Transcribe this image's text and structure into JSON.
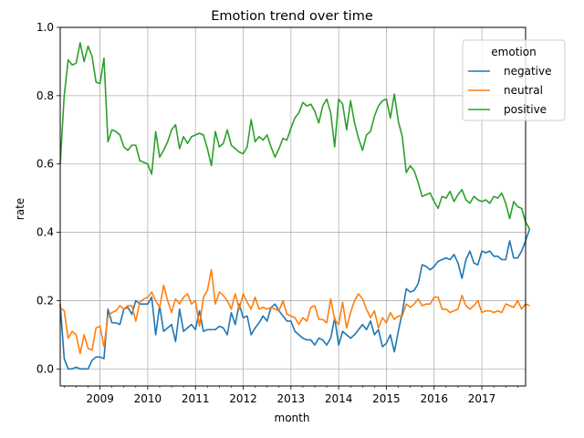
{
  "chart_data": {
    "type": "line",
    "title": "Emotion trend over time",
    "xlabel": "month",
    "ylabel": "rate",
    "xlim": [
      "2008-03",
      "2017-12"
    ],
    "ylim": [
      -0.05,
      1.0
    ],
    "grid": true,
    "x_ticks": [
      "2009",
      "2010",
      "2011",
      "2012",
      "2013",
      "2014",
      "2015",
      "2016",
      "2017"
    ],
    "y_ticks": [
      "0.0",
      "0.2",
      "0.4",
      "0.6",
      "0.8",
      "1.0"
    ],
    "legend": {
      "title": "emotion",
      "position": "top-right"
    },
    "x_start": "2008-03",
    "series": [
      {
        "name": "negative",
        "color": "#1f77b4",
        "values": [
          0.19,
          0.03,
          0.0,
          0.0,
          0.005,
          0.0,
          0.0,
          0.0,
          0.025,
          0.035,
          0.035,
          0.03,
          0.175,
          0.135,
          0.135,
          0.13,
          0.175,
          0.18,
          0.16,
          0.2,
          0.19,
          0.19,
          0.19,
          0.21,
          0.1,
          0.185,
          0.11,
          0.12,
          0.13,
          0.08,
          0.175,
          0.11,
          0.12,
          0.13,
          0.115,
          0.17,
          0.11,
          0.115,
          0.115,
          0.115,
          0.125,
          0.12,
          0.1,
          0.165,
          0.13,
          0.19,
          0.15,
          0.155,
          0.1,
          0.12,
          0.135,
          0.155,
          0.14,
          0.18,
          0.19,
          0.17,
          0.155,
          0.14,
          0.14,
          0.11,
          0.1,
          0.09,
          0.085,
          0.085,
          0.07,
          0.09,
          0.085,
          0.07,
          0.09,
          0.15,
          0.07,
          0.11,
          0.1,
          0.09,
          0.1,
          0.115,
          0.13,
          0.115,
          0.14,
          0.1,
          0.115,
          0.065,
          0.075,
          0.1,
          0.05,
          0.11,
          0.165,
          0.235,
          0.225,
          0.23,
          0.25,
          0.305,
          0.3,
          0.29,
          0.3,
          0.315,
          0.32,
          0.325,
          0.32,
          0.335,
          0.31,
          0.265,
          0.32,
          0.345,
          0.31,
          0.305,
          0.345,
          0.34,
          0.345,
          0.33,
          0.33,
          0.32,
          0.32,
          0.375,
          0.325,
          0.325,
          0.345,
          0.375,
          0.41
        ]
      },
      {
        "name": "neutral",
        "color": "#ff7f0e",
        "values": [
          0.18,
          0.17,
          0.09,
          0.11,
          0.1,
          0.045,
          0.1,
          0.06,
          0.055,
          0.12,
          0.125,
          0.065,
          0.155,
          0.165,
          0.17,
          0.185,
          0.175,
          0.185,
          0.185,
          0.14,
          0.195,
          0.205,
          0.21,
          0.225,
          0.2,
          0.18,
          0.245,
          0.2,
          0.165,
          0.205,
          0.19,
          0.21,
          0.22,
          0.19,
          0.2,
          0.125,
          0.21,
          0.23,
          0.29,
          0.19,
          0.225,
          0.215,
          0.2,
          0.175,
          0.22,
          0.175,
          0.22,
          0.195,
          0.175,
          0.21,
          0.175,
          0.18,
          0.175,
          0.18,
          0.175,
          0.17,
          0.2,
          0.16,
          0.155,
          0.15,
          0.13,
          0.15,
          0.14,
          0.18,
          0.185,
          0.145,
          0.145,
          0.135,
          0.205,
          0.145,
          0.13,
          0.195,
          0.12,
          0.165,
          0.2,
          0.22,
          0.205,
          0.175,
          0.15,
          0.17,
          0.12,
          0.15,
          0.135,
          0.165,
          0.145,
          0.155,
          0.155,
          0.19,
          0.18,
          0.19,
          0.205,
          0.185,
          0.19,
          0.19,
          0.21,
          0.21,
          0.175,
          0.175,
          0.165,
          0.17,
          0.175,
          0.215,
          0.185,
          0.175,
          0.185,
          0.2,
          0.165,
          0.17,
          0.17,
          0.165,
          0.17,
          0.165,
          0.19,
          0.185,
          0.18,
          0.2,
          0.175,
          0.19,
          0.185
        ]
      },
      {
        "name": "positive",
        "color": "#2ca02c",
        "values": [
          0.6,
          0.8,
          0.905,
          0.89,
          0.895,
          0.955,
          0.9,
          0.945,
          0.915,
          0.84,
          0.835,
          0.91,
          0.665,
          0.7,
          0.695,
          0.685,
          0.65,
          0.64,
          0.655,
          0.655,
          0.61,
          0.605,
          0.6,
          0.57,
          0.695,
          0.62,
          0.64,
          0.665,
          0.7,
          0.715,
          0.645,
          0.68,
          0.66,
          0.68,
          0.685,
          0.69,
          0.685,
          0.645,
          0.595,
          0.695,
          0.65,
          0.66,
          0.7,
          0.655,
          0.645,
          0.635,
          0.63,
          0.65,
          0.73,
          0.665,
          0.68,
          0.67,
          0.685,
          0.65,
          0.62,
          0.645,
          0.675,
          0.67,
          0.705,
          0.735,
          0.75,
          0.78,
          0.77,
          0.775,
          0.755,
          0.72,
          0.77,
          0.79,
          0.75,
          0.65,
          0.79,
          0.775,
          0.7,
          0.785,
          0.72,
          0.675,
          0.64,
          0.685,
          0.695,
          0.74,
          0.77,
          0.785,
          0.79,
          0.735,
          0.805,
          0.725,
          0.68,
          0.575,
          0.595,
          0.58,
          0.545,
          0.505,
          0.51,
          0.515,
          0.49,
          0.47,
          0.505,
          0.5,
          0.52,
          0.49,
          0.51,
          0.525,
          0.495,
          0.485,
          0.505,
          0.495,
          0.49,
          0.495,
          0.485,
          0.505,
          0.5,
          0.515,
          0.485,
          0.44,
          0.49,
          0.475,
          0.47,
          0.43,
          0.41
        ]
      }
    ]
  }
}
